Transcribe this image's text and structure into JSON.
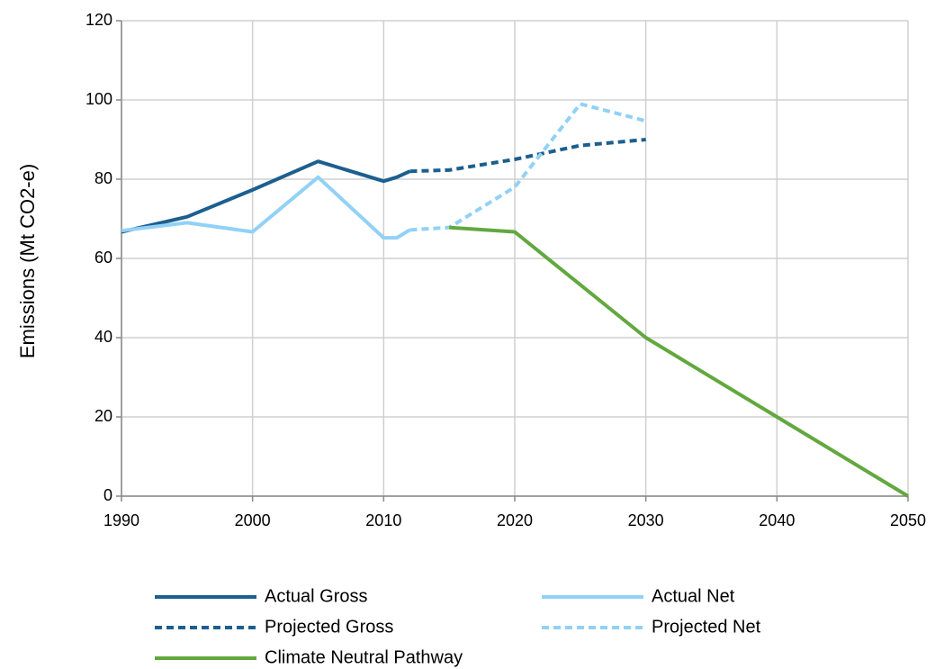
{
  "chart_data": {
    "type": "line",
    "ylabel": "Emissions (Mt CO2-e)",
    "xlim": [
      1990,
      2050
    ],
    "xticks": [
      1990,
      2000,
      2010,
      2020,
      2030,
      2040,
      2050
    ],
    "ylim": [
      0,
      120
    ],
    "yticks": [
      0,
      20,
      40,
      60,
      80,
      100,
      120
    ],
    "grid": true,
    "legend": "bottom",
    "series": [
      {
        "name": "Actual Gross",
        "color": "#1c5f8f",
        "style": "solid",
        "x": [
          1990,
          1995,
          2000,
          2005,
          2010,
          2011,
          2012
        ],
        "values": [
          66.7,
          70.5,
          77.3,
          84.5,
          79.5,
          80.5,
          82
        ]
      },
      {
        "name": "Actual Net",
        "color": "#92d1f6",
        "style": "solid",
        "x": [
          1990,
          1995,
          2000,
          2005,
          2010,
          2011,
          2012
        ],
        "values": [
          67,
          69,
          66.7,
          80.5,
          65.2,
          65.2,
          67.2
        ]
      },
      {
        "name": "Projected Gross",
        "color": "#1c5f8f",
        "style": "dashed",
        "x": [
          2012,
          2015,
          2020,
          2025,
          2030
        ],
        "values": [
          82,
          82.3,
          85,
          88.5,
          90
        ]
      },
      {
        "name": "Projected Net",
        "color": "#92d1f6",
        "style": "dashed",
        "x": [
          2012,
          2015,
          2020,
          2025,
          2030
        ],
        "values": [
          67.2,
          67.8,
          78,
          99,
          94.7
        ]
      },
      {
        "name": "Climate Neutral Pathway",
        "color": "#62a83f",
        "style": "solid",
        "x": [
          2015,
          2020,
          2030,
          2040,
          2050
        ],
        "values": [
          67.8,
          66.7,
          40,
          20,
          0
        ]
      }
    ]
  }
}
